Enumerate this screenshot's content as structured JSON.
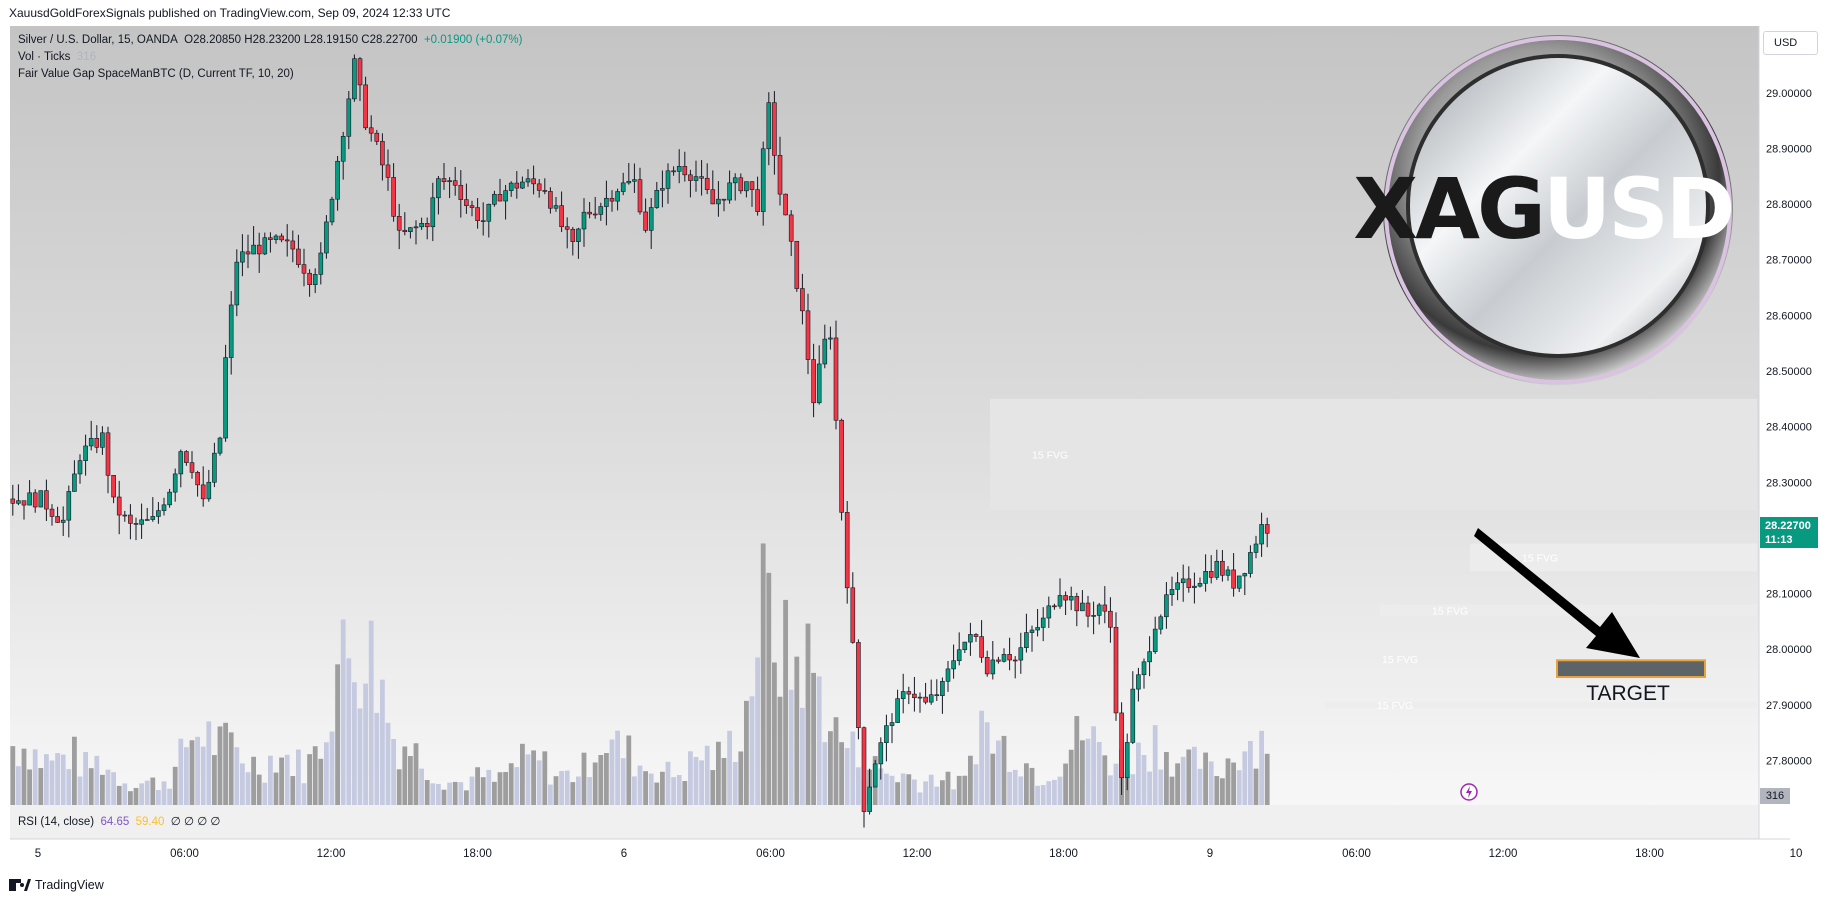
{
  "header": {
    "publisher_line": "XauusdGoldForexSignals published on TradingView.com, Sep 09, 2024 12:33 UTC"
  },
  "legend": {
    "symbol": "Silver / U.S. Dollar, 15, OANDA",
    "ohlc": "O28.20850  H28.23200  L28.19150  C28.22700",
    "change": "+0.01900 (+0.07%)",
    "vol_label": "Vol · Ticks",
    "vol_value": "316",
    "indicator": "Fair Value Gap SpaceManBTC (D, Current TF, 10, 20)"
  },
  "currency": "USD",
  "last_price": {
    "price": "28.22700",
    "countdown": "11:13"
  },
  "volume_last": "316",
  "rsi": {
    "label": "RSI (14, close)",
    "value": "64.65",
    "ma": "59.40",
    "extra": "∅ ∅ ∅ ∅"
  },
  "logo": {
    "text_a": "XAG",
    "text_b": "USD"
  },
  "target_label": "TARGET",
  "fvg_label": "15 FVG",
  "footer": {
    "brand": "TradingView"
  },
  "colors": {
    "up": "#089981",
    "down": "#f23645",
    "fvg": "#d9d9d9",
    "volume": "#9e9e9e",
    "volume_light": "#c5cae0",
    "target_fill": "#5d6468",
    "target_border": "#e6a23c"
  },
  "chart_data": {
    "type": "candlestick",
    "y_ticks": [
      "29.00000",
      "28.90000",
      "28.80000",
      "28.70000",
      "28.60000",
      "28.50000",
      "28.40000",
      "28.30000",
      "28.20000",
      "28.10000",
      "28.00000",
      "27.90000",
      "27.80000"
    ],
    "x_ticks": [
      "5",
      "06:00",
      "12:00",
      "18:00",
      "6",
      "06:00",
      "12:00",
      "18:00",
      "9",
      "06:00",
      "12:00",
      "18:00",
      "10"
    ],
    "ylim": [
      27.72,
      29.12
    ],
    "price_path": [
      [
        0,
        28.27
      ],
      [
        6,
        28.27
      ],
      [
        10,
        28.23
      ],
      [
        13,
        28.35
      ],
      [
        17,
        28.38
      ],
      [
        19,
        28.26
      ],
      [
        22,
        28.22
      ],
      [
        26,
        28.23
      ],
      [
        29,
        28.29
      ],
      [
        31,
        28.36
      ],
      [
        33,
        28.33
      ],
      [
        35,
        28.26
      ],
      [
        38,
        28.38
      ],
      [
        39,
        28.52
      ],
      [
        41,
        28.7
      ],
      [
        44,
        28.72
      ],
      [
        48,
        28.73
      ],
      [
        51,
        28.72
      ],
      [
        54,
        28.67
      ],
      [
        56,
        28.7
      ],
      [
        57,
        28.76
      ],
      [
        59,
        28.88
      ],
      [
        62,
        29.05
      ],
      [
        64,
        28.95
      ],
      [
        66,
        28.9
      ],
      [
        68,
        28.84
      ],
      [
        70,
        28.74
      ],
      [
        72,
        28.75
      ],
      [
        75,
        28.77
      ],
      [
        77,
        28.84
      ],
      [
        80,
        28.84
      ],
      [
        82,
        28.8
      ],
      [
        85,
        28.77
      ],
      [
        88,
        28.82
      ],
      [
        92,
        28.84
      ],
      [
        96,
        28.83
      ],
      [
        99,
        28.76
      ],
      [
        101,
        28.72
      ],
      [
        103,
        28.78
      ],
      [
        106,
        28.8
      ],
      [
        109,
        28.83
      ],
      [
        112,
        28.84
      ],
      [
        114,
        28.76
      ],
      [
        117,
        28.84
      ],
      [
        120,
        28.87
      ],
      [
        123,
        28.85
      ],
      [
        126,
        28.8
      ],
      [
        129,
        28.83
      ],
      [
        132,
        28.84
      ],
      [
        134,
        28.8
      ],
      [
        136,
        28.97
      ],
      [
        138,
        28.82
      ],
      [
        140,
        28.72
      ],
      [
        142,
        28.6
      ],
      [
        144,
        28.45
      ],
      [
        146,
        28.55
      ],
      [
        147,
        28.57
      ],
      [
        149,
        28.25
      ],
      [
        151,
        28.0
      ],
      [
        153,
        27.72
      ],
      [
        155,
        27.8
      ],
      [
        158,
        27.88
      ],
      [
        161,
        27.93
      ],
      [
        164,
        27.9
      ],
      [
        167,
        27.93
      ],
      [
        170,
        28.01
      ],
      [
        173,
        28.02
      ],
      [
        175,
        27.97
      ],
      [
        178,
        28.0
      ],
      [
        180,
        27.98
      ],
      [
        182,
        28.02
      ],
      [
        185,
        28.05
      ],
      [
        188,
        28.11
      ],
      [
        191,
        28.08
      ],
      [
        193,
        28.06
      ],
      [
        195,
        28.08
      ],
      [
        197,
        28.04
      ],
      [
        199,
        27.76
      ],
      [
        201,
        27.92
      ],
      [
        203,
        27.97
      ],
      [
        205,
        28.05
      ],
      [
        208,
        28.1
      ],
      [
        211,
        28.12
      ],
      [
        213,
        28.13
      ],
      [
        216,
        28.15
      ],
      [
        219,
        28.12
      ],
      [
        221,
        28.15
      ],
      [
        224,
        28.22
      ]
    ],
    "volume_path": [
      8,
      8,
      6,
      6,
      7,
      5,
      6,
      4,
      3,
      3,
      3,
      4,
      9,
      10,
      8,
      8,
      6,
      5,
      7,
      6,
      5,
      8,
      18,
      20,
      22,
      17,
      9,
      8,
      6,
      4,
      3,
      3,
      4,
      3,
      5,
      6,
      6,
      4,
      4,
      5,
      9,
      8,
      7,
      5,
      5,
      4,
      5,
      7,
      6,
      8,
      12,
      26,
      24,
      18,
      20,
      16,
      10,
      8,
      6,
      5,
      4,
      4,
      3,
      4,
      3,
      3,
      12,
      8,
      8,
      6,
      4,
      5,
      7,
      10,
      8,
      6,
      6,
      7,
      9,
      7,
      5,
      6,
      4,
      6,
      8,
      9,
      9
    ],
    "fvg_zones": [
      {
        "label": "15 FVG",
        "top": 28.45,
        "bottom": 28.25
      },
      {
        "label": "15 FVG",
        "top": 28.19,
        "bottom": 28.14
      },
      {
        "label": "15 FVG",
        "top": 28.08,
        "bottom": 28.06
      },
      {
        "label": "15 FVG",
        "top": 27.985,
        "bottom": 27.98
      },
      {
        "label": "15 FVG",
        "top": 27.905,
        "bottom": 27.895
      }
    ],
    "target_zone": {
      "label": "TARGET",
      "top": 27.98,
      "bottom": 27.95
    }
  }
}
